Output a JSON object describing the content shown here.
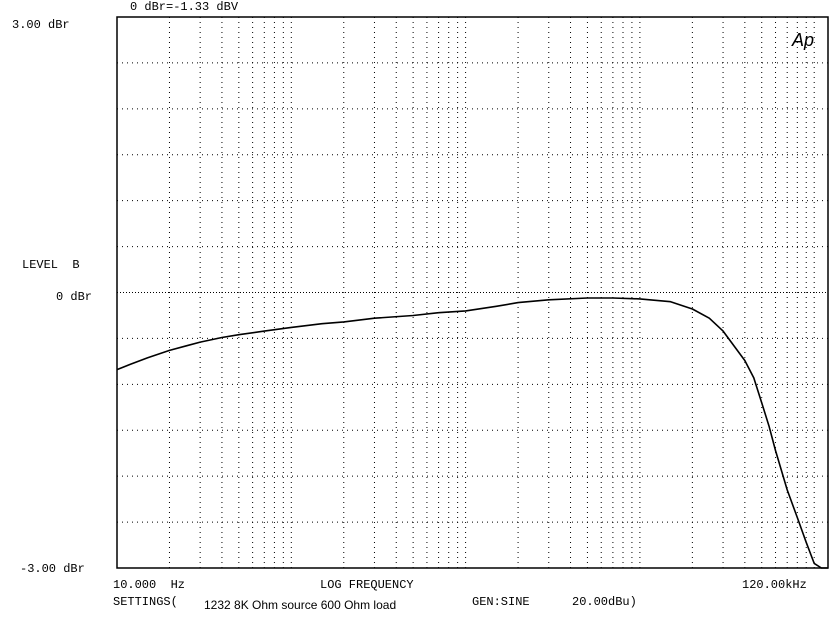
{
  "header": {
    "reference": "0 dBr=-1.33 dBV"
  },
  "logo": {
    "text": "Ap"
  },
  "footer": {
    "settings_label": "SETTINGS(",
    "description": "1232 8K Ohm source 600 Ohm load",
    "generator": "GEN:SINE",
    "gen_level": "20.00dBu)"
  },
  "chart_data": {
    "type": "line",
    "title": "",
    "xlabel": "LOG FREQUENCY",
    "ylabel": "LEVEL  B",
    "x_scale": "log",
    "xlim": [
      10,
      120000
    ],
    "ylim": [
      -3,
      3
    ],
    "x_tick_labels": {
      "min": "10.000  Hz",
      "max": "120.00kHz"
    },
    "y_tick_labels": {
      "top": "3.00 dBr",
      "zero": "0 dBr",
      "bottom": "-3.00 dBr"
    },
    "grid": true,
    "series": [
      {
        "x": [
          10,
          12,
          15,
          20,
          25,
          30,
          40,
          50,
          70,
          100,
          150,
          200,
          300,
          500,
          700,
          1000,
          1500,
          2000,
          3000,
          5000,
          7000,
          10000,
          15000,
          20000,
          25000,
          30000,
          40000,
          45000,
          50000,
          55000,
          60000,
          70000,
          80000,
          90000,
          100000,
          110000,
          120000
        ],
        "y": [
          -0.84,
          -0.78,
          -0.71,
          -0.63,
          -0.58,
          -0.54,
          -0.49,
          -0.46,
          -0.42,
          -0.38,
          -0.34,
          -0.32,
          -0.28,
          -0.25,
          -0.22,
          -0.2,
          -0.15,
          -0.11,
          -0.08,
          -0.06,
          -0.06,
          -0.07,
          -0.1,
          -0.18,
          -0.28,
          -0.42,
          -0.74,
          -0.93,
          -1.2,
          -1.45,
          -1.72,
          -2.15,
          -2.45,
          -2.72,
          -2.95,
          -3.1,
          -3.25
        ]
      }
    ]
  }
}
